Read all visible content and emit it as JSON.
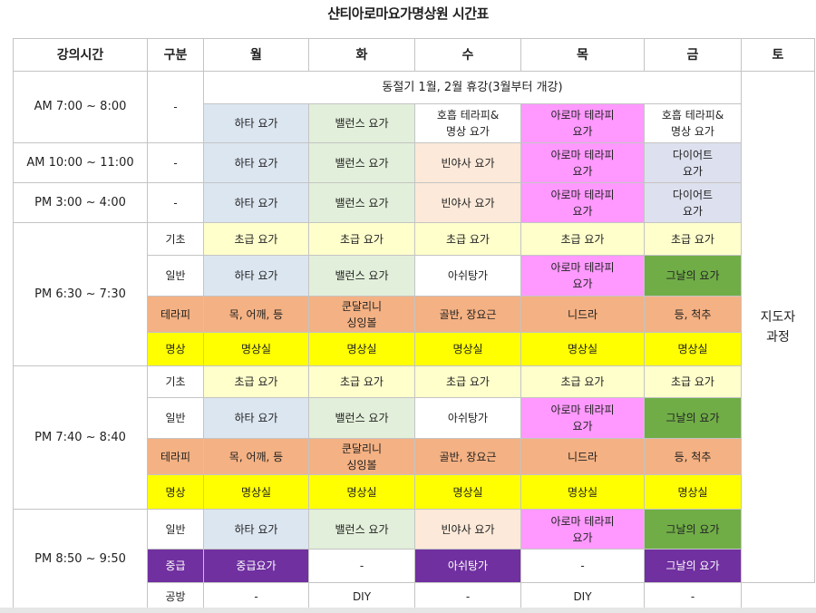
{
  "title": "샨티아로마요가명상원 시간표",
  "header": [
    "강의시간",
    "구분",
    "월",
    "화",
    "수",
    "목",
    "금",
    "토"
  ],
  "notice": "동절기 1월, 2월 휴강(3월부터 개강)",
  "instructor_course": [
    "지도자",
    "과정"
  ],
  "dash": "-",
  "rows": [
    {
      "time": "AM 7:00 ~ 8:00",
      "cat": "-",
      "cells": [
        {
          "text": [
            "하타 요가"
          ],
          "bg": "#dce6f1"
        },
        {
          "text": [
            "밸런스 요가"
          ],
          "bg": "#e2efda"
        },
        {
          "text": [
            "호흡 테라피&",
            "명상 요가"
          ],
          "bg": "#ffffff"
        },
        {
          "text": [
            "아로마 테라피",
            "요가"
          ],
          "bg": "#ff99ff"
        },
        {
          "text": [
            "호흡 테라피&",
            "명상 요가"
          ],
          "bg": "#ffffff"
        }
      ]
    },
    {
      "time": "AM 10:00 ~ 11:00",
      "cat": "-",
      "cells": [
        {
          "text": [
            "하타 요가"
          ],
          "bg": "#dce6f1"
        },
        {
          "text": [
            "밸런스 요가"
          ],
          "bg": "#e2efda"
        },
        {
          "text": [
            "빈야사 요가"
          ],
          "bg": "#fde9d9"
        },
        {
          "text": [
            "아로마 테라피",
            "요가"
          ],
          "bg": "#ff99ff"
        },
        {
          "text": [
            "다이어트",
            "요가"
          ],
          "bg": "#dde0ee"
        }
      ]
    },
    {
      "time": "PM 3:00 ~ 4:00",
      "cat": "-",
      "cells": [
        {
          "text": [
            "하타 요가"
          ],
          "bg": "#dce6f1"
        },
        {
          "text": [
            "밸런스 요가"
          ],
          "bg": "#e2efda"
        },
        {
          "text": [
            "빈야사 요가"
          ],
          "bg": "#fde9d9"
        },
        {
          "text": [
            "아로마 테라피",
            "요가"
          ],
          "bg": "#ff99ff"
        },
        {
          "text": [
            "다이어트",
            "요가"
          ],
          "bg": "#dde0ee"
        }
      ]
    }
  ],
  "blocks": [
    {
      "time": "PM 6:30 ~ 7:30",
      "rows": [
        {
          "cat": "기초",
          "cells": [
            {
              "text": [
                "초급 요가"
              ],
              "bg": "#ffffcc"
            },
            {
              "text": [
                "초급 요가"
              ],
              "bg": "#ffffcc"
            },
            {
              "text": [
                "초급 요가"
              ],
              "bg": "#ffffcc"
            },
            {
              "text": [
                "초급 요가"
              ],
              "bg": "#ffffcc"
            },
            {
              "text": [
                "초급 요가"
              ],
              "bg": "#ffffcc"
            }
          ]
        },
        {
          "cat": "일반",
          "cells": [
            {
              "text": [
                "하타 요가"
              ],
              "bg": "#dce6f1"
            },
            {
              "text": [
                "밸런스 요가"
              ],
              "bg": "#e2efda"
            },
            {
              "text": [
                "아쉬탕가"
              ],
              "bg": "#ffffff"
            },
            {
              "text": [
                "아로마 테라피",
                "요가"
              ],
              "bg": "#ff99ff"
            },
            {
              "text": [
                "그날의 요가"
              ],
              "bg": "#70ad47"
            }
          ]
        },
        {
          "cat": "테라피",
          "cells": [
            {
              "text": [
                "목, 어깨, 등"
              ],
              "bg": "#f4b183"
            },
            {
              "text": [
                "쿤달리니",
                "싱잉볼"
              ],
              "bg": "#f4b183"
            },
            {
              "text": [
                "골반, 장요근"
              ],
              "bg": "#f4b183"
            },
            {
              "text": [
                "니드라"
              ],
              "bg": "#f4b183"
            },
            {
              "text": [
                "등, 척추"
              ],
              "bg": "#f4b183"
            }
          ]
        },
        {
          "cat": "명상",
          "cells": [
            {
              "text": [
                "명상실"
              ],
              "bg": "#ffff00"
            },
            {
              "text": [
                "명상실"
              ],
              "bg": "#ffff00"
            },
            {
              "text": [
                "명상실"
              ],
              "bg": "#ffff00"
            },
            {
              "text": [
                "명상실"
              ],
              "bg": "#ffff00"
            },
            {
              "text": [
                "명상실"
              ],
              "bg": "#ffff00"
            }
          ]
        }
      ]
    },
    {
      "time": "PM 7:40 ~ 8:40",
      "rows": [
        {
          "cat": "기초",
          "cells": [
            {
              "text": [
                "초급 요가"
              ],
              "bg": "#ffffcc"
            },
            {
              "text": [
                "초급 요가"
              ],
              "bg": "#ffffcc"
            },
            {
              "text": [
                "초급 요가"
              ],
              "bg": "#ffffcc"
            },
            {
              "text": [
                "초급 요가"
              ],
              "bg": "#ffffcc"
            },
            {
              "text": [
                "초급 요가"
              ],
              "bg": "#ffffcc"
            }
          ]
        },
        {
          "cat": "일반",
          "cells": [
            {
              "text": [
                "하타 요가"
              ],
              "bg": "#dce6f1"
            },
            {
              "text": [
                "밸런스 요가"
              ],
              "bg": "#e2efda"
            },
            {
              "text": [
                "아쉬탕가"
              ],
              "bg": "#ffffff"
            },
            {
              "text": [
                "아로마 테라피",
                "요가"
              ],
              "bg": "#ff99ff"
            },
            {
              "text": [
                "그날의 요가"
              ],
              "bg": "#70ad47"
            }
          ]
        },
        {
          "cat": "테라피",
          "cells": [
            {
              "text": [
                "목, 어깨, 등"
              ],
              "bg": "#f4b183"
            },
            {
              "text": [
                "쿤달리니",
                "싱잉볼"
              ],
              "bg": "#f4b183"
            },
            {
              "text": [
                "골반, 장요근"
              ],
              "bg": "#f4b183"
            },
            {
              "text": [
                "니드라"
              ],
              "bg": "#f4b183"
            },
            {
              "text": [
                "등, 척추"
              ],
              "bg": "#f4b183"
            }
          ]
        },
        {
          "cat": "명상",
          "cells": [
            {
              "text": [
                "명상실"
              ],
              "bg": "#ffff00"
            },
            {
              "text": [
                "명상실"
              ],
              "bg": "#ffff00"
            },
            {
              "text": [
                "명상실"
              ],
              "bg": "#ffff00"
            },
            {
              "text": [
                "명상실"
              ],
              "bg": "#ffff00"
            },
            {
              "text": [
                "명상실"
              ],
              "bg": "#ffff00"
            }
          ]
        }
      ]
    },
    {
      "time": "PM 8:50 ~ 9:50",
      "rows": [
        {
          "cat": "일반",
          "cells": [
            {
              "text": [
                "하타 요가"
              ],
              "bg": "#dce6f1"
            },
            {
              "text": [
                "밸런스 요가"
              ],
              "bg": "#e2efda"
            },
            {
              "text": [
                "빈야사 요가"
              ],
              "bg": "#fde9d9"
            },
            {
              "text": [
                "아로마 테라피",
                "요가"
              ],
              "bg": "#ff99ff"
            },
            {
              "text": [
                "그날의 요가"
              ],
              "bg": "#70ad47"
            }
          ]
        },
        {
          "cat": "중급",
          "cells": [
            {
              "text": [
                "중급요가"
              ],
              "bg": "#7030a0"
            },
            {
              "text": [
                "-"
              ],
              "bg": "#ffffff"
            },
            {
              "text": [
                "아쉬탕가"
              ],
              "bg": "#7030a0"
            },
            {
              "text": [
                "-"
              ],
              "bg": "#ffffff"
            },
            {
              "text": [
                "그날의 요가"
              ],
              "bg": "#7030a0"
            }
          ]
        },
        {
          "cat": "공방",
          "cells": [
            {
              "text": [
                "-"
              ],
              "bg": "#ffffff"
            },
            {
              "text": [
                "DIY"
              ],
              "bg": "#ffffff"
            },
            {
              "text": [
                "-"
              ],
              "bg": "#ffffff"
            },
            {
              "text": [
                "DIY"
              ],
              "bg": "#ffffff"
            },
            {
              "text": [
                "-"
              ],
              "bg": "#ffffff"
            }
          ]
        }
      ]
    }
  ]
}
